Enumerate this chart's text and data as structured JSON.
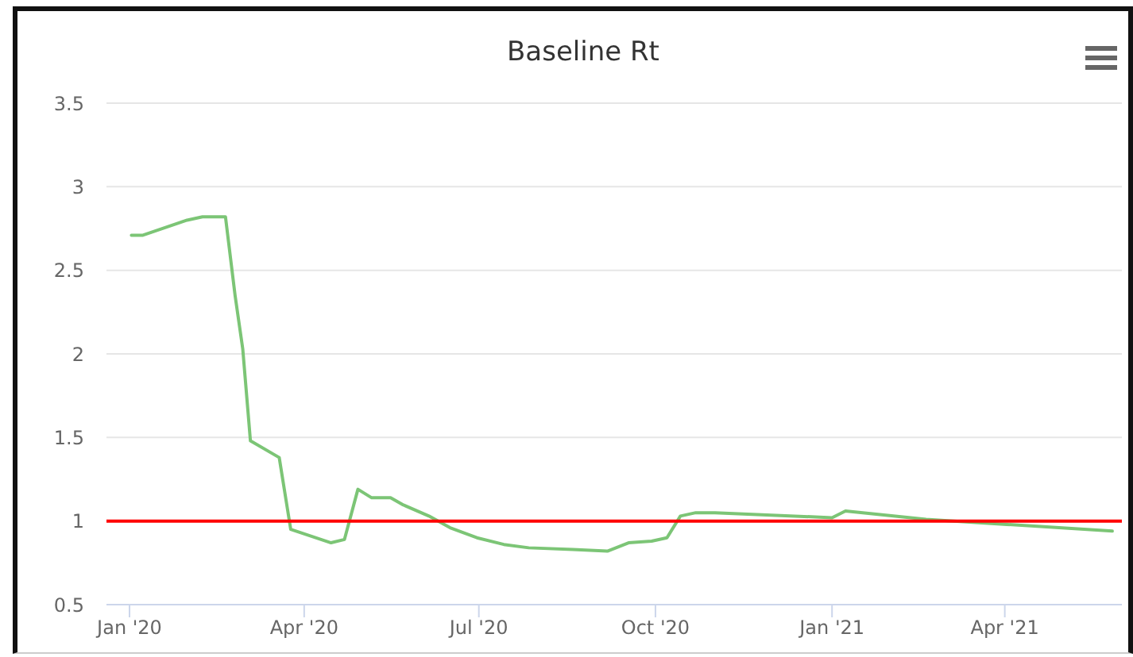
{
  "chart_data": {
    "type": "line",
    "title": "Baseline Rt",
    "x": [
      "2020-01-02",
      "2020-01-08",
      "2020-01-31",
      "2020-02-08",
      "2020-02-20",
      "2020-02-25",
      "2020-02-29",
      "2020-03-04",
      "2020-03-19",
      "2020-03-25",
      "2020-04-15",
      "2020-04-22",
      "2020-04-29",
      "2020-05-06",
      "2020-05-16",
      "2020-05-22",
      "2020-06-05",
      "2020-06-16",
      "2020-06-30",
      "2020-07-14",
      "2020-07-27",
      "2020-08-19",
      "2020-09-06",
      "2020-09-17",
      "2020-09-29",
      "2020-10-07",
      "2020-10-14",
      "2020-10-22",
      "2020-11-01",
      "2021-01-01",
      "2021-01-08",
      "2021-02-19",
      "2021-04-02",
      "2021-05-27"
    ],
    "series": [
      {
        "color": "#7cc576",
        "values": [
          2.71,
          2.71,
          2.8,
          2.82,
          2.82,
          2.35,
          2.03,
          1.48,
          1.38,
          0.95,
          0.87,
          0.89,
          1.19,
          1.14,
          1.14,
          1.1,
          1.03,
          0.96,
          0.9,
          0.86,
          0.84,
          0.83,
          0.82,
          0.87,
          0.88,
          0.9,
          1.03,
          1.05,
          1.05,
          1.02,
          1.06,
          1.01,
          0.98,
          0.94
        ]
      }
    ],
    "xlim": [
      "2019-12-20",
      "2021-06-01"
    ],
    "xticks": [
      {
        "value": "2020-01-01",
        "label": "Jan '20"
      },
      {
        "value": "2020-04-01",
        "label": "Apr '20"
      },
      {
        "value": "2020-07-01",
        "label": "Jul '20"
      },
      {
        "value": "2020-10-01",
        "label": "Oct '20"
      },
      {
        "value": "2021-01-01",
        "label": "Jan '21"
      },
      {
        "value": "2021-04-01",
        "label": "Apr '21"
      }
    ],
    "ylim": [
      0.5,
      3.5
    ],
    "yticks": [
      0.5,
      1,
      1.5,
      2,
      2.5,
      3,
      3.5
    ],
    "grid": "y",
    "ref_lines": [
      {
        "axis": "y",
        "value": 1,
        "color": "#ff0000"
      }
    ]
  }
}
